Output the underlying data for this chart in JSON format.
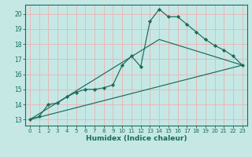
{
  "xlabel": "Humidex (Indice chaleur)",
  "bg_color": "#c5e8e5",
  "grid_color": "#e8b8b8",
  "line_color": "#1a6b5a",
  "xlim": [
    -0.5,
    23.5
  ],
  "ylim": [
    12.6,
    20.6
  ],
  "yticks": [
    13,
    14,
    15,
    16,
    17,
    18,
    19,
    20
  ],
  "xticks": [
    0,
    1,
    2,
    3,
    4,
    5,
    6,
    7,
    8,
    9,
    10,
    11,
    12,
    13,
    14,
    15,
    16,
    17,
    18,
    19,
    20,
    21,
    22,
    23
  ],
  "curve": {
    "x": [
      0,
      1,
      2,
      3,
      4,
      5,
      6,
      7,
      8,
      9,
      10,
      11,
      12,
      13,
      14,
      15,
      16,
      17,
      18,
      19,
      20,
      21,
      22,
      23
    ],
    "y": [
      13.0,
      13.2,
      14.0,
      14.1,
      14.5,
      14.8,
      15.0,
      15.0,
      15.1,
      15.3,
      16.6,
      17.2,
      16.5,
      19.5,
      20.3,
      19.8,
      19.8,
      19.3,
      18.8,
      18.3,
      17.9,
      17.6,
      17.2,
      16.6
    ]
  },
  "line_straight": {
    "x": [
      0,
      23
    ],
    "y": [
      13.0,
      16.6
    ]
  },
  "line_peak": {
    "x": [
      0,
      14,
      23
    ],
    "y": [
      13.0,
      18.3,
      16.6
    ]
  }
}
